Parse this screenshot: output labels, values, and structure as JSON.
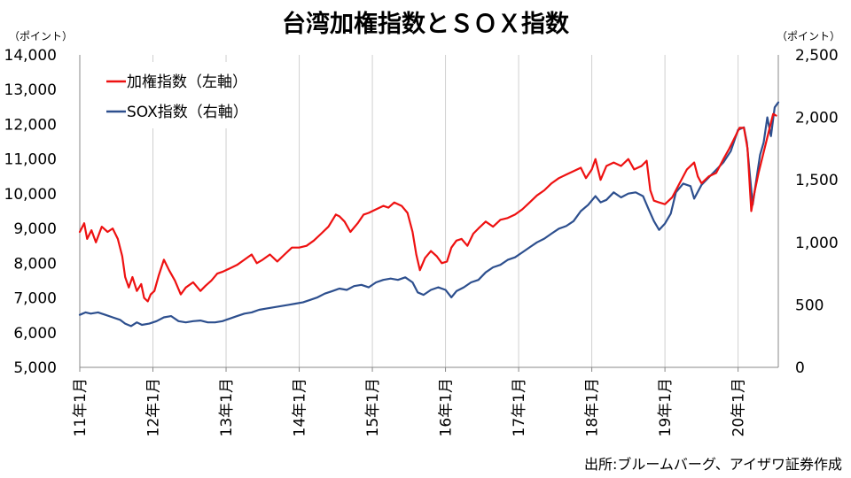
{
  "chart_data": {
    "type": "line",
    "title": "台湾加権指数とＳＯＸ指数",
    "left_axis": {
      "unit_label": "（ポイント）",
      "ylim": [
        5000,
        14000
      ],
      "ticks": [
        "5,000",
        "6,000",
        "7,000",
        "8,000",
        "9,000",
        "10,000",
        "11,000",
        "12,000",
        "13,000",
        "14,000"
      ],
      "tick_values": [
        5000,
        6000,
        7000,
        8000,
        9000,
        10000,
        11000,
        12000,
        13000,
        14000
      ]
    },
    "right_axis": {
      "unit_label": "（ポイント）",
      "ylim": [
        0,
        2500
      ],
      "ticks": [
        "0",
        "500",
        "1,000",
        "1,500",
        "2,000",
        "2,500"
      ],
      "tick_values": [
        0,
        500,
        1000,
        1500,
        2000,
        2500
      ]
    },
    "x_axis": {
      "range": [
        2011.0,
        2020.55
      ],
      "ticks": [
        "11年1月",
        "12年1月",
        "13年1月",
        "14年1月",
        "15年1月",
        "16年1月",
        "17年1月",
        "18年1月",
        "19年1月",
        "20年1月"
      ],
      "tick_values": [
        2011,
        2012,
        2013,
        2014,
        2015,
        2016,
        2017,
        2018,
        2019,
        2020
      ]
    },
    "grid": "vertical",
    "legend_position": "top-left",
    "series": [
      {
        "name": "加権指数（左軸）",
        "axis": "left",
        "color": "#ee1111",
        "x": [
          2011.0,
          2011.06,
          2011.1,
          2011.16,
          2011.22,
          2011.3,
          2011.38,
          2011.45,
          2011.52,
          2011.58,
          2011.62,
          2011.67,
          2011.72,
          2011.78,
          2011.84,
          2011.88,
          2011.93,
          2011.97,
          2012.02,
          2012.08,
          2012.15,
          2012.22,
          2012.3,
          2012.38,
          2012.45,
          2012.55,
          2012.65,
          2012.72,
          2012.8,
          2012.88,
          2012.95,
          2013.05,
          2013.15,
          2013.25,
          2013.35,
          2013.42,
          2013.5,
          2013.6,
          2013.7,
          2013.8,
          2013.9,
          2014.0,
          2014.1,
          2014.2,
          2014.3,
          2014.4,
          2014.5,
          2014.55,
          2014.62,
          2014.7,
          2014.8,
          2014.88,
          2014.95,
          2015.05,
          2015.15,
          2015.22,
          2015.3,
          2015.4,
          2015.48,
          2015.55,
          2015.6,
          2015.65,
          2015.72,
          2015.8,
          2015.88,
          2015.95,
          2016.02,
          2016.08,
          2016.15,
          2016.22,
          2016.3,
          2016.38,
          2016.45,
          2016.55,
          2016.65,
          2016.75,
          2016.85,
          2016.95,
          2017.05,
          2017.15,
          2017.25,
          2017.35,
          2017.45,
          2017.55,
          2017.65,
          2017.75,
          2017.85,
          2017.92,
          2018.0,
          2018.05,
          2018.12,
          2018.2,
          2018.3,
          2018.4,
          2018.5,
          2018.58,
          2018.68,
          2018.75,
          2018.8,
          2018.85,
          2018.92,
          2019.0,
          2019.1,
          2019.2,
          2019.3,
          2019.4,
          2019.45,
          2019.5,
          2019.6,
          2019.7,
          2019.8,
          2019.88,
          2019.95,
          2020.02,
          2020.08,
          2020.13,
          2020.18,
          2020.22,
          2020.28,
          2020.35,
          2020.42,
          2020.48,
          2020.52
        ],
        "values": [
          8900,
          9150,
          8700,
          8950,
          8600,
          9050,
          8900,
          9000,
          8700,
          8200,
          7600,
          7300,
          7600,
          7200,
          7400,
          7000,
          6900,
          7100,
          7200,
          7650,
          8100,
          7800,
          7500,
          7100,
          7300,
          7450,
          7200,
          7350,
          7500,
          7700,
          7750,
          7850,
          7950,
          8100,
          8250,
          8000,
          8100,
          8250,
          8050,
          8250,
          8450,
          8450,
          8500,
          8650,
          8850,
          9050,
          9400,
          9350,
          9200,
          8900,
          9150,
          9400,
          9450,
          9550,
          9650,
          9600,
          9750,
          9650,
          9450,
          8900,
          8250,
          7800,
          8150,
          8350,
          8200,
          8000,
          8050,
          8450,
          8650,
          8700,
          8500,
          8850,
          9000,
          9200,
          9050,
          9250,
          9300,
          9400,
          9550,
          9750,
          9950,
          10100,
          10300,
          10450,
          10550,
          10650,
          10750,
          10450,
          10700,
          11000,
          10400,
          10800,
          10900,
          10800,
          11000,
          10700,
          10800,
          10950,
          10100,
          9800,
          9750,
          9700,
          9900,
          10300,
          10700,
          10900,
          10500,
          10300,
          10500,
          10600,
          11000,
          11300,
          11600,
          11900,
          11900,
          11300,
          9500,
          10000,
          10600,
          11200,
          11800,
          12300,
          12250
        ]
      },
      {
        "name": "SOX指数（右軸）",
        "axis": "right",
        "color": "#2d4f8e",
        "x": [
          2011.0,
          2011.08,
          2011.15,
          2011.25,
          2011.35,
          2011.45,
          2011.55,
          2011.62,
          2011.7,
          2011.78,
          2011.85,
          2011.95,
          2012.05,
          2012.15,
          2012.25,
          2012.35,
          2012.45,
          2012.55,
          2012.65,
          2012.75,
          2012.85,
          2012.95,
          2013.05,
          2013.15,
          2013.25,
          2013.35,
          2013.45,
          2013.55,
          2013.65,
          2013.75,
          2013.85,
          2013.95,
          2014.05,
          2014.15,
          2014.25,
          2014.35,
          2014.45,
          2014.55,
          2014.65,
          2014.75,
          2014.85,
          2014.95,
          2015.05,
          2015.15,
          2015.25,
          2015.35,
          2015.45,
          2015.55,
          2015.62,
          2015.7,
          2015.8,
          2015.9,
          2016.0,
          2016.08,
          2016.15,
          2016.25,
          2016.35,
          2016.45,
          2016.55,
          2016.65,
          2016.75,
          2016.85,
          2016.95,
          2017.05,
          2017.15,
          2017.25,
          2017.35,
          2017.45,
          2017.55,
          2017.65,
          2017.75,
          2017.85,
          2017.95,
          2018.05,
          2018.12,
          2018.2,
          2018.3,
          2018.4,
          2018.5,
          2018.6,
          2018.7,
          2018.78,
          2018.85,
          2018.92,
          2019.0,
          2019.08,
          2019.15,
          2019.25,
          2019.35,
          2019.4,
          2019.5,
          2019.6,
          2019.7,
          2019.8,
          2019.9,
          2020.0,
          2020.08,
          2020.12,
          2020.16,
          2020.2,
          2020.25,
          2020.3,
          2020.35,
          2020.4,
          2020.45,
          2020.5,
          2020.55
        ],
        "values": [
          420,
          440,
          430,
          440,
          420,
          400,
          380,
          350,
          330,
          360,
          340,
          350,
          370,
          400,
          410,
          370,
          360,
          370,
          375,
          360,
          360,
          370,
          390,
          410,
          430,
          440,
          460,
          470,
          480,
          490,
          500,
          510,
          520,
          540,
          560,
          590,
          610,
          630,
          620,
          650,
          660,
          640,
          680,
          700,
          710,
          700,
          720,
          680,
          600,
          580,
          620,
          640,
          620,
          560,
          610,
          640,
          680,
          700,
          760,
          800,
          820,
          860,
          880,
          920,
          960,
          1000,
          1030,
          1070,
          1110,
          1130,
          1170,
          1250,
          1300,
          1370,
          1320,
          1340,
          1400,
          1360,
          1390,
          1400,
          1370,
          1260,
          1170,
          1100,
          1150,
          1230,
          1400,
          1470,
          1450,
          1350,
          1460,
          1520,
          1580,
          1640,
          1730,
          1900,
          1920,
          1800,
          1550,
          1300,
          1500,
          1700,
          1800,
          2000,
          1850,
          2080,
          2120
        ]
      }
    ],
    "source": "出所:ブルームバーグ、アイザワ証券作成"
  }
}
